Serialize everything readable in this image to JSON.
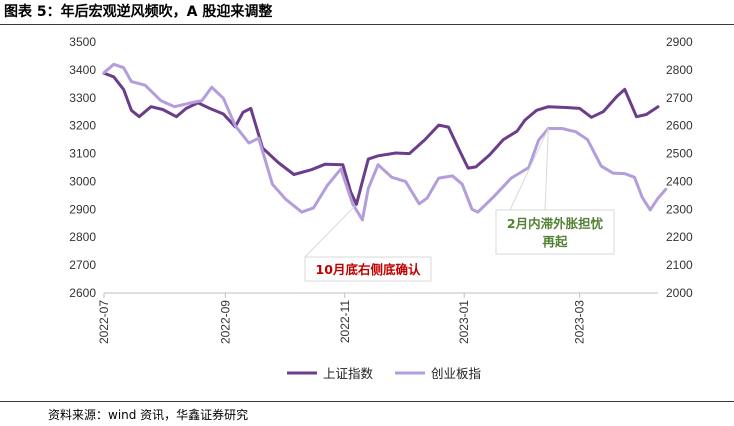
{
  "title": "图表 5：年后宏观逆风频吹，A 股迎来调整",
  "source": "资料来源：wind 资讯，华鑫证券研究",
  "chart_data": {
    "type": "line",
    "x_ticks": [
      "2022-07",
      "2022-09",
      "2022-11",
      "2023-01",
      "2023-03"
    ],
    "x_range": [
      "2022-07-01",
      "2023-04-10"
    ],
    "y_left": {
      "ticks": [
        2600,
        2700,
        2800,
        2900,
        3000,
        3100,
        3200,
        3300,
        3400,
        3500
      ],
      "ylim": [
        2600,
        3500
      ]
    },
    "y_right": {
      "ticks": [
        2000,
        2100,
        2200,
        2300,
        2400,
        2500,
        2600,
        2700,
        2800,
        2900
      ],
      "ylim": [
        2000,
        2900
      ]
    },
    "legend_position": "bottom",
    "series": [
      {
        "name": "上证指数",
        "axis": "left",
        "color": "#6b3d8a",
        "points": [
          [
            "2022-07-01",
            3388
          ],
          [
            "2022-07-06",
            3375
          ],
          [
            "2022-07-11",
            3330
          ],
          [
            "2022-07-15",
            3255
          ],
          [
            "2022-07-19",
            3232
          ],
          [
            "2022-07-25",
            3268
          ],
          [
            "2022-07-31",
            3258
          ],
          [
            "2022-08-07",
            3232
          ],
          [
            "2022-08-12",
            3262
          ],
          [
            "2022-08-18",
            3282
          ],
          [
            "2022-08-24",
            3262
          ],
          [
            "2022-08-31",
            3242
          ],
          [
            "2022-09-06",
            3196
          ],
          [
            "2022-09-10",
            3248
          ],
          [
            "2022-09-14",
            3262
          ],
          [
            "2022-09-20",
            3120
          ],
          [
            "2022-09-28",
            3068
          ],
          [
            "2022-10-06",
            3025
          ],
          [
            "2022-10-15",
            3042
          ],
          [
            "2022-10-22",
            3062
          ],
          [
            "2022-10-31",
            3060
          ],
          [
            "2022-11-04",
            2962
          ],
          [
            "2022-11-07",
            2918
          ],
          [
            "2022-11-10",
            3000
          ],
          [
            "2022-11-13",
            3080
          ],
          [
            "2022-11-18",
            3092
          ],
          [
            "2022-11-27",
            3102
          ],
          [
            "2022-12-04",
            3100
          ],
          [
            "2022-12-12",
            3150
          ],
          [
            "2022-12-19",
            3202
          ],
          [
            "2022-12-24",
            3195
          ],
          [
            "2022-12-29",
            3120
          ],
          [
            "2023-01-03",
            3048
          ],
          [
            "2023-01-07",
            3052
          ],
          [
            "2023-01-14",
            3095
          ],
          [
            "2023-01-21",
            3150
          ],
          [
            "2023-01-28",
            3180
          ],
          [
            "2023-02-01",
            3220
          ],
          [
            "2023-02-07",
            3255
          ],
          [
            "2023-02-13",
            3268
          ],
          [
            "2023-02-22",
            3265
          ],
          [
            "2023-03-01",
            3262
          ],
          [
            "2023-03-07",
            3230
          ],
          [
            "2023-03-13",
            3250
          ],
          [
            "2023-03-20",
            3305
          ],
          [
            "2023-03-24",
            3330
          ],
          [
            "2023-03-30",
            3232
          ],
          [
            "2023-04-04",
            3240
          ],
          [
            "2023-04-10",
            3268
          ]
        ]
      },
      {
        "name": "创业板指",
        "axis": "right",
        "color": "#b39ddb",
        "points": [
          [
            "2022-07-01",
            2790
          ],
          [
            "2022-07-06",
            2820
          ],
          [
            "2022-07-11",
            2808
          ],
          [
            "2022-07-15",
            2758
          ],
          [
            "2022-07-22",
            2745
          ],
          [
            "2022-07-30",
            2690
          ],
          [
            "2022-08-06",
            2668
          ],
          [
            "2022-08-13",
            2680
          ],
          [
            "2022-08-20",
            2690
          ],
          [
            "2022-08-25",
            2738
          ],
          [
            "2022-08-31",
            2698
          ],
          [
            "2022-09-06",
            2600
          ],
          [
            "2022-09-13",
            2538
          ],
          [
            "2022-09-18",
            2555
          ],
          [
            "2022-09-25",
            2390
          ],
          [
            "2022-10-02",
            2335
          ],
          [
            "2022-10-10",
            2290
          ],
          [
            "2022-10-16",
            2305
          ],
          [
            "2022-10-23",
            2385
          ],
          [
            "2022-10-30",
            2445
          ],
          [
            "2022-11-05",
            2320
          ],
          [
            "2022-11-10",
            2262
          ],
          [
            "2022-11-13",
            2375
          ],
          [
            "2022-11-18",
            2460
          ],
          [
            "2022-11-25",
            2415
          ],
          [
            "2022-12-02",
            2400
          ],
          [
            "2022-12-09",
            2320
          ],
          [
            "2022-12-13",
            2340
          ],
          [
            "2022-12-19",
            2412
          ],
          [
            "2022-12-26",
            2420
          ],
          [
            "2022-12-31",
            2390
          ],
          [
            "2023-01-05",
            2300
          ],
          [
            "2023-01-08",
            2290
          ],
          [
            "2023-01-16",
            2345
          ],
          [
            "2023-01-25",
            2412
          ],
          [
            "2023-02-03",
            2450
          ],
          [
            "2023-02-08",
            2548
          ],
          [
            "2023-02-13",
            2590
          ],
          [
            "2023-02-20",
            2590
          ],
          [
            "2023-02-27",
            2578
          ],
          [
            "2023-03-05",
            2550
          ],
          [
            "2023-03-12",
            2455
          ],
          [
            "2023-03-18",
            2430
          ],
          [
            "2023-03-24",
            2428
          ],
          [
            "2023-03-29",
            2415
          ],
          [
            "2023-04-02",
            2342
          ],
          [
            "2023-04-06",
            2298
          ],
          [
            "2023-04-10",
            2340
          ],
          [
            "2023-04-14",
            2372
          ]
        ]
      }
    ],
    "annotations": [
      {
        "text": "10月底右侧底确认",
        "color": "#c00000",
        "points_to": [
          "2022-11-06",
          2918,
          "left"
        ]
      },
      {
        "lines": [
          "2月内滞外胀担忧",
          "再起"
        ],
        "color": "#538135",
        "points_to": [
          "2023-02-13",
          2590,
          "right"
        ]
      }
    ]
  }
}
